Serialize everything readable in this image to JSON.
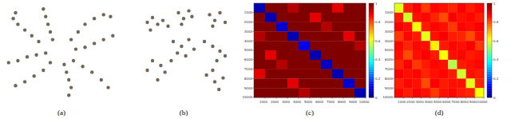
{
  "chart_data": [
    {
      "type": "scatter",
      "label": "(a)",
      "color": "#5b4b3c",
      "tick_labels": false,
      "xlim": [
        0,
        100
      ],
      "ylim": [
        0,
        100
      ],
      "x": [
        30,
        24,
        18,
        12,
        8,
        10,
        42,
        40,
        38,
        36,
        34,
        58,
        64,
        70,
        78,
        86,
        92,
        62,
        70,
        78,
        86,
        94,
        60,
        68,
        76,
        84,
        90,
        52,
        54,
        56,
        58,
        56,
        40,
        34,
        26,
        18,
        10,
        36,
        28,
        20,
        12,
        4
      ],
      "values": [
        60,
        66,
        72,
        78,
        84,
        90,
        62,
        70,
        78,
        86,
        94,
        62,
        70,
        78,
        84,
        88,
        86,
        52,
        54,
        58,
        62,
        66,
        40,
        34,
        28,
        20,
        12,
        36,
        28,
        20,
        12,
        4,
        38,
        30,
        24,
        18,
        14,
        48,
        46,
        44,
        40,
        38
      ]
    },
    {
      "type": "scatter",
      "label": "(b)",
      "color": "#5b4b3c",
      "tick_labels": false,
      "xlim": [
        0,
        100
      ],
      "ylim": [
        0,
        100
      ],
      "x": [
        15,
        20,
        25,
        18,
        30,
        35,
        45,
        50,
        55,
        48,
        58,
        75,
        80,
        85,
        78,
        90,
        40,
        48,
        55,
        44,
        52,
        60,
        70,
        78,
        85,
        82,
        90,
        72,
        80,
        78,
        88,
        84,
        20,
        28,
        15,
        25,
        32,
        38
      ],
      "values": [
        80,
        85,
        78,
        72,
        82,
        76,
        90,
        84,
        92,
        78,
        86,
        88,
        82,
        90,
        76,
        80,
        60,
        55,
        62,
        48,
        45,
        52,
        60,
        55,
        50,
        40,
        45,
        25,
        18,
        30,
        22,
        10,
        40,
        35,
        30,
        20,
        28,
        40
      ]
    },
    {
      "type": "heatmap",
      "label": "(c)",
      "xlim": [
        0,
        10000
      ],
      "ylim": [
        0,
        10000
      ],
      "xticks": [
        1000,
        2000,
        3000,
        4000,
        5000,
        6000,
        7000,
        8000,
        9000,
        10000
      ],
      "yticks": [
        1000,
        2000,
        3000,
        4000,
        5000,
        6000,
        7000,
        8000,
        9000,
        10000
      ],
      "colorbar_range": [
        0,
        1
      ],
      "colorbar_ticks": [
        0,
        0.2,
        0.4,
        0.6,
        0.8,
        1
      ],
      "cells": [
        [
          0.05,
          1,
          1,
          0.95,
          1,
          1,
          1,
          0.9,
          1,
          1
        ],
        [
          1,
          0.05,
          1,
          1,
          1,
          0.9,
          1,
          1,
          1,
          1
        ],
        [
          1,
          1,
          0.08,
          1,
          1,
          1,
          0.95,
          1,
          1,
          1
        ],
        [
          0.95,
          1,
          1,
          0.05,
          1,
          1,
          1,
          1,
          0.9,
          1
        ],
        [
          1,
          1,
          1,
          1,
          0.1,
          1,
          1,
          1,
          1,
          0.95
        ],
        [
          1,
          0.9,
          1,
          1,
          1,
          0.05,
          1,
          1,
          1,
          1
        ],
        [
          1,
          1,
          0.95,
          1,
          1,
          1,
          0.06,
          1,
          1,
          1
        ],
        [
          0.9,
          1,
          1,
          1,
          1,
          1,
          1,
          0.05,
          1,
          1
        ],
        [
          1,
          1,
          1,
          0.9,
          1,
          1,
          1,
          1,
          0.08,
          1
        ],
        [
          1,
          1,
          1,
          1,
          0.95,
          1,
          1,
          1,
          1,
          0.05
        ]
      ]
    },
    {
      "type": "heatmap",
      "label": "(d)",
      "xlim": [
        0,
        10000
      ],
      "ylim": [
        0,
        10000
      ],
      "xticks": [
        1000,
        2000,
        3000,
        4000,
        5000,
        6000,
        7000,
        8000,
        9000,
        10000
      ],
      "yticks": [
        1000,
        2000,
        3000,
        4000,
        5000,
        6000,
        7000,
        8000,
        9000,
        10000
      ],
      "colorbar_range": [
        0,
        1
      ],
      "colorbar_ticks": [
        0,
        0.2,
        0.4,
        0.6,
        0.8,
        1
      ],
      "cells": [
        [
          0.6,
          0.85,
          0.88,
          0.82,
          0.87,
          0.86,
          0.84,
          0.88,
          0.85,
          0.87
        ],
        [
          0.85,
          0.58,
          0.86,
          0.87,
          0.84,
          0.8,
          0.88,
          0.86,
          0.87,
          0.85
        ],
        [
          0.88,
          0.86,
          0.62,
          0.85,
          0.87,
          0.86,
          0.82,
          0.87,
          0.86,
          0.88
        ],
        [
          0.82,
          0.87,
          0.85,
          0.6,
          0.86,
          0.88,
          0.85,
          0.84,
          0.8,
          0.86
        ],
        [
          0.87,
          0.84,
          0.87,
          0.86,
          0.64,
          0.85,
          0.87,
          0.86,
          0.88,
          0.82
        ],
        [
          0.86,
          0.8,
          0.86,
          0.88,
          0.85,
          0.62,
          0.86,
          0.87,
          0.85,
          0.86
        ],
        [
          0.84,
          0.88,
          0.82,
          0.85,
          0.87,
          0.86,
          0.55,
          0.85,
          0.86,
          0.87
        ],
        [
          0.88,
          0.86,
          0.87,
          0.84,
          0.86,
          0.87,
          0.85,
          0.58,
          0.86,
          0.85
        ],
        [
          0.85,
          0.87,
          0.86,
          0.8,
          0.88,
          0.85,
          0.86,
          0.86,
          0.6,
          0.84
        ],
        [
          0.87,
          0.85,
          0.88,
          0.86,
          0.82,
          0.86,
          0.87,
          0.85,
          0.84,
          0.62
        ]
      ]
    }
  ]
}
